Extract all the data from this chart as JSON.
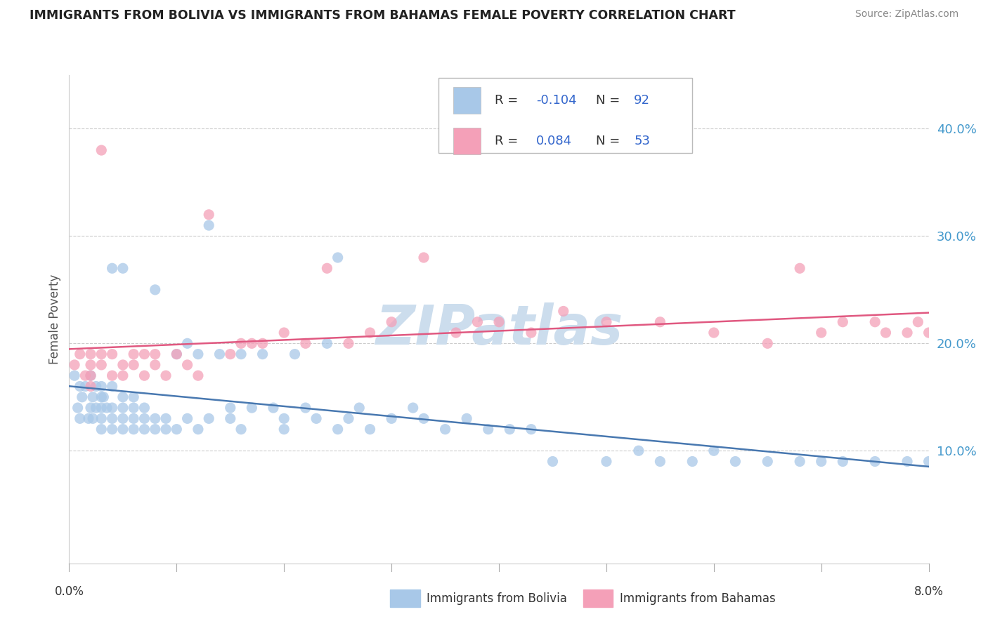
{
  "title": "IMMIGRANTS FROM BOLIVIA VS IMMIGRANTS FROM BAHAMAS FEMALE POVERTY CORRELATION CHART",
  "source": "Source: ZipAtlas.com",
  "ylabel": "Female Poverty",
  "yaxis_labels": [
    "10.0%",
    "20.0%",
    "30.0%",
    "40.0%"
  ],
  "yaxis_values": [
    0.1,
    0.2,
    0.3,
    0.4
  ],
  "bolivia_color": "#a8c8e8",
  "bahamas_color": "#f4a0b8",
  "bolivia_line_color": "#4878b0",
  "bahamas_line_color": "#e05880",
  "xlim": [
    0.0,
    0.08
  ],
  "ylim": [
    -0.005,
    0.45
  ],
  "bolivia_scatter_x": [
    0.0005,
    0.0008,
    0.001,
    0.001,
    0.0012,
    0.0015,
    0.0018,
    0.002,
    0.002,
    0.0022,
    0.0022,
    0.0025,
    0.0025,
    0.003,
    0.003,
    0.003,
    0.003,
    0.003,
    0.0032,
    0.0035,
    0.004,
    0.004,
    0.004,
    0.004,
    0.004,
    0.005,
    0.005,
    0.005,
    0.005,
    0.005,
    0.006,
    0.006,
    0.006,
    0.006,
    0.007,
    0.007,
    0.007,
    0.008,
    0.008,
    0.008,
    0.009,
    0.009,
    0.01,
    0.01,
    0.011,
    0.011,
    0.012,
    0.012,
    0.013,
    0.013,
    0.014,
    0.015,
    0.015,
    0.016,
    0.016,
    0.017,
    0.018,
    0.019,
    0.02,
    0.02,
    0.021,
    0.022,
    0.023,
    0.024,
    0.025,
    0.025,
    0.026,
    0.027,
    0.028,
    0.03,
    0.032,
    0.033,
    0.035,
    0.037,
    0.039,
    0.041,
    0.043,
    0.045,
    0.05,
    0.053,
    0.055,
    0.058,
    0.06,
    0.062,
    0.065,
    0.068,
    0.07,
    0.072,
    0.075,
    0.078,
    0.08
  ],
  "bolivia_scatter_y": [
    0.17,
    0.14,
    0.16,
    0.13,
    0.15,
    0.16,
    0.13,
    0.17,
    0.14,
    0.15,
    0.13,
    0.16,
    0.14,
    0.15,
    0.13,
    0.16,
    0.14,
    0.12,
    0.15,
    0.14,
    0.14,
    0.12,
    0.16,
    0.13,
    0.27,
    0.13,
    0.12,
    0.15,
    0.14,
    0.27,
    0.13,
    0.12,
    0.15,
    0.14,
    0.13,
    0.12,
    0.14,
    0.13,
    0.12,
    0.25,
    0.13,
    0.12,
    0.12,
    0.19,
    0.13,
    0.2,
    0.12,
    0.19,
    0.13,
    0.31,
    0.19,
    0.13,
    0.14,
    0.19,
    0.12,
    0.14,
    0.19,
    0.14,
    0.13,
    0.12,
    0.19,
    0.14,
    0.13,
    0.2,
    0.12,
    0.28,
    0.13,
    0.14,
    0.12,
    0.13,
    0.14,
    0.13,
    0.12,
    0.13,
    0.12,
    0.12,
    0.12,
    0.09,
    0.09,
    0.1,
    0.09,
    0.09,
    0.1,
    0.09,
    0.09,
    0.09,
    0.09,
    0.09,
    0.09,
    0.09,
    0.09
  ],
  "bahamas_scatter_x": [
    0.0005,
    0.001,
    0.0015,
    0.002,
    0.002,
    0.002,
    0.002,
    0.003,
    0.003,
    0.003,
    0.004,
    0.004,
    0.005,
    0.005,
    0.006,
    0.006,
    0.007,
    0.007,
    0.008,
    0.008,
    0.009,
    0.01,
    0.011,
    0.012,
    0.013,
    0.015,
    0.016,
    0.017,
    0.018,
    0.02,
    0.022,
    0.024,
    0.026,
    0.028,
    0.03,
    0.033,
    0.036,
    0.038,
    0.04,
    0.043,
    0.046,
    0.05,
    0.055,
    0.06,
    0.065,
    0.068,
    0.07,
    0.072,
    0.075,
    0.076,
    0.078,
    0.079,
    0.08
  ],
  "bahamas_scatter_y": [
    0.18,
    0.19,
    0.17,
    0.19,
    0.18,
    0.17,
    0.16,
    0.38,
    0.19,
    0.18,
    0.17,
    0.19,
    0.18,
    0.17,
    0.19,
    0.18,
    0.19,
    0.17,
    0.19,
    0.18,
    0.17,
    0.19,
    0.18,
    0.17,
    0.32,
    0.19,
    0.2,
    0.2,
    0.2,
    0.21,
    0.2,
    0.27,
    0.2,
    0.21,
    0.22,
    0.28,
    0.21,
    0.22,
    0.22,
    0.21,
    0.23,
    0.22,
    0.22,
    0.21,
    0.2,
    0.27,
    0.21,
    0.22,
    0.22,
    0.21,
    0.21,
    0.22,
    0.21
  ],
  "watermark": "ZIPatlas",
  "watermark_color": "#ccdded"
}
